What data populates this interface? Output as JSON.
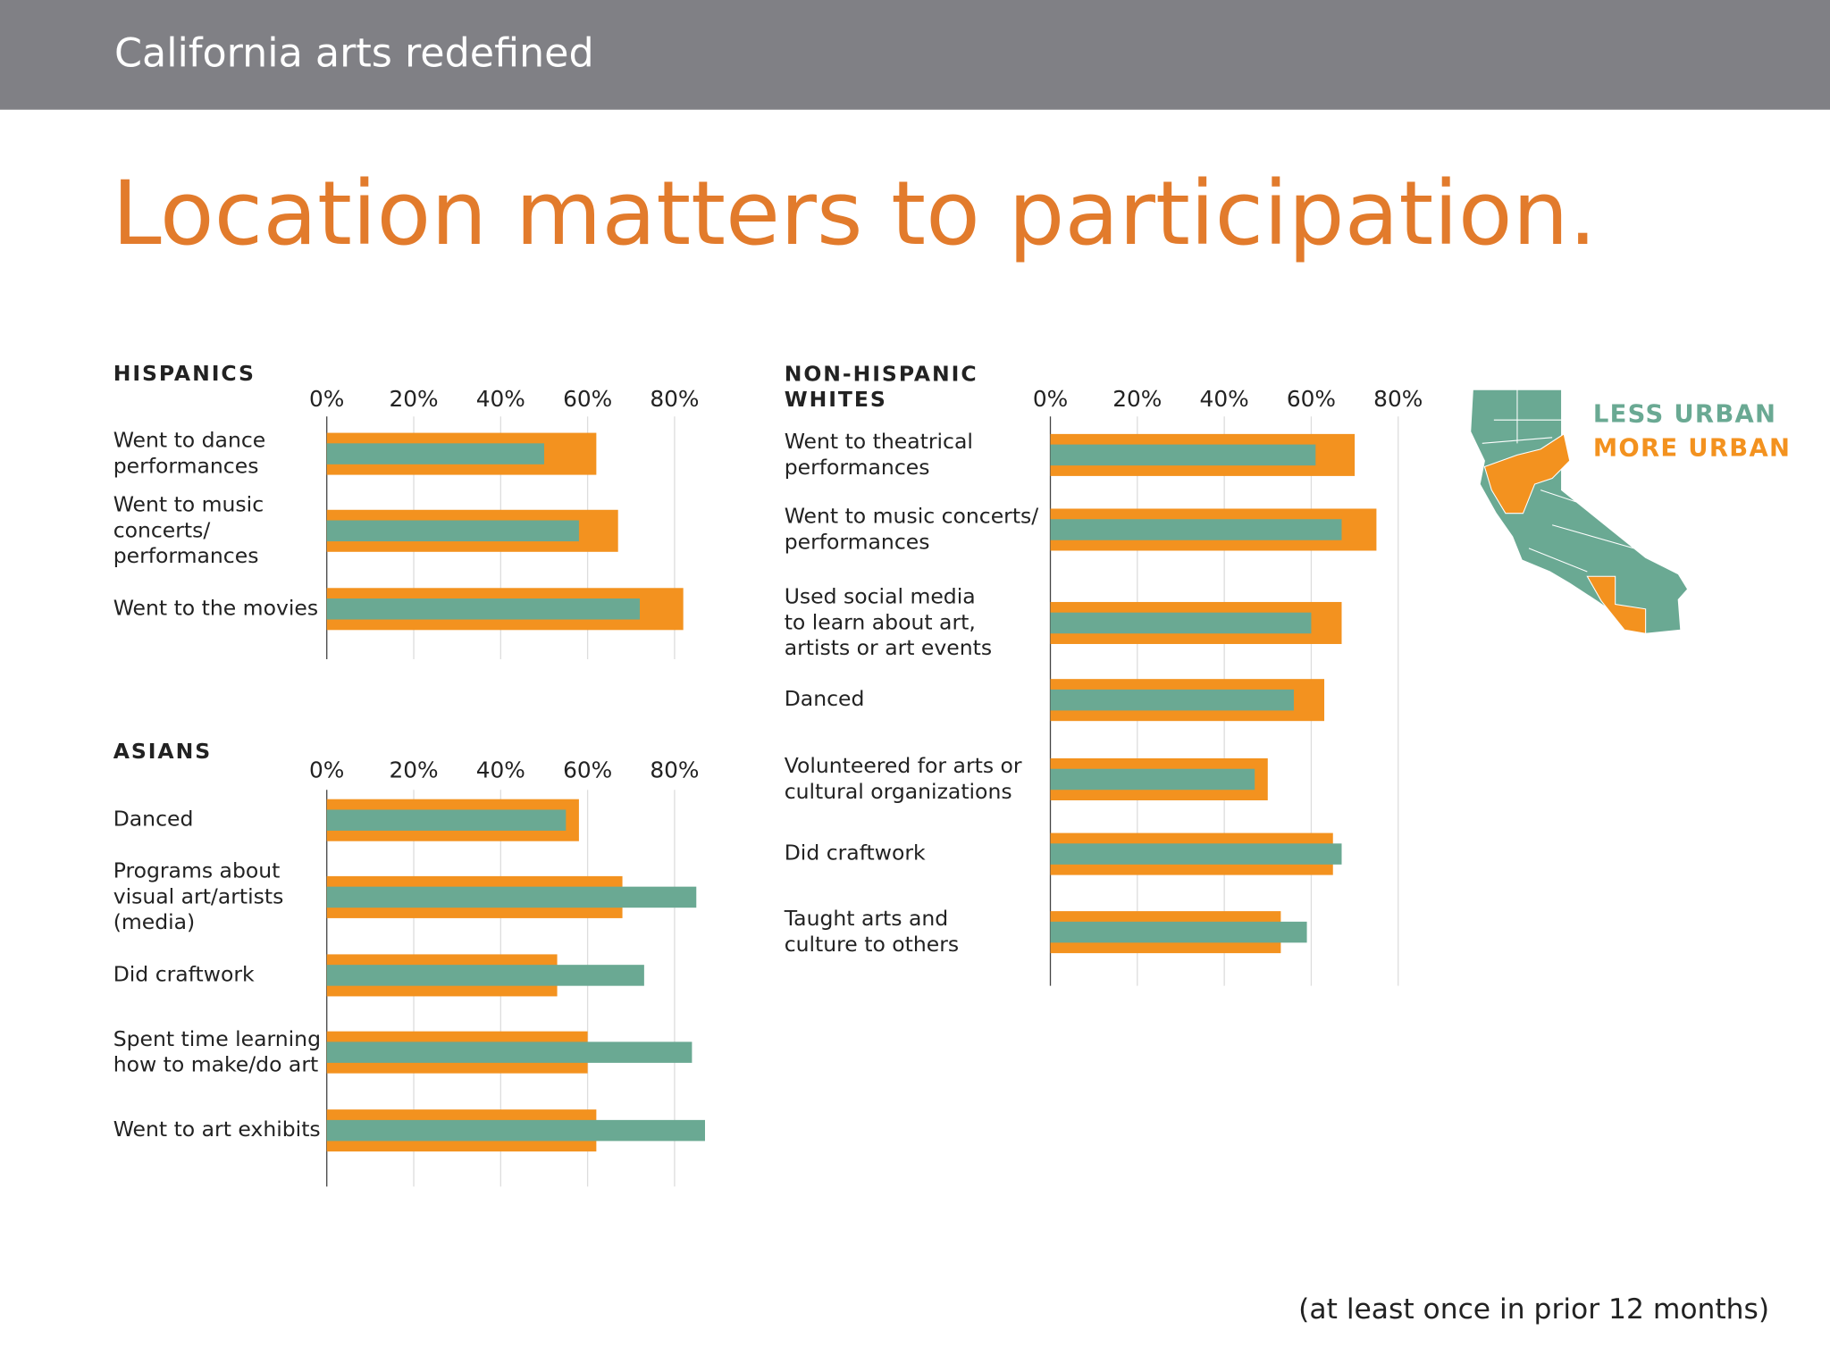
{
  "header": "California arts redefined",
  "chart_data": {
    "type": "bar",
    "title": "Location matters to participation.",
    "note": "(at least once in prior 12 months)",
    "series": [
      {
        "name": "LESS URBAN",
        "color": "#6aa993"
      },
      {
        "name": "MORE URBAN",
        "color": "#f3921f"
      }
    ],
    "xlim": [
      0,
      90
    ],
    "xticks": [
      {
        "value": 0,
        "label": "0%"
      },
      {
        "value": 20,
        "label": "20%"
      },
      {
        "value": 40,
        "label": "40%"
      },
      {
        "value": 60,
        "label": "60%"
      },
      {
        "value": 80,
        "label": "80%"
      }
    ],
    "panels": [
      {
        "title": "HISPANICS",
        "categories": [
          "Went to dance\nperformances",
          "Went to music\nconcerts/\nperformances",
          "Went to the movies"
        ],
        "values": [
          [
            50,
            58,
            72
          ],
          [
            62,
            67,
            82
          ]
        ]
      },
      {
        "title": "ASIANS",
        "categories": [
          "Danced",
          "Programs about\nvisual art/artists\n(media)",
          "Did craftwork",
          "Spent time learning\nhow to make/do art",
          "Went to art exhibits"
        ],
        "values": [
          [
            55,
            85,
            73,
            84,
            87
          ],
          [
            58,
            68,
            53,
            60,
            62
          ]
        ]
      },
      {
        "title": "NON-HISPANIC\nWHITES",
        "categories": [
          "Went to theatrical\nperformances",
          "Went to music concerts/\nperformances",
          "Used social media\nto learn about art,\nartists or art events",
          "Danced",
          "Volunteered for arts or\ncultural organizations",
          "Did craftwork",
          "Taught arts and\nculture to others"
        ],
        "values": [
          [
            61,
            67,
            60,
            56,
            47,
            67,
            59
          ],
          [
            70,
            75,
            67,
            63,
            50,
            65,
            53
          ]
        ]
      }
    ]
  }
}
